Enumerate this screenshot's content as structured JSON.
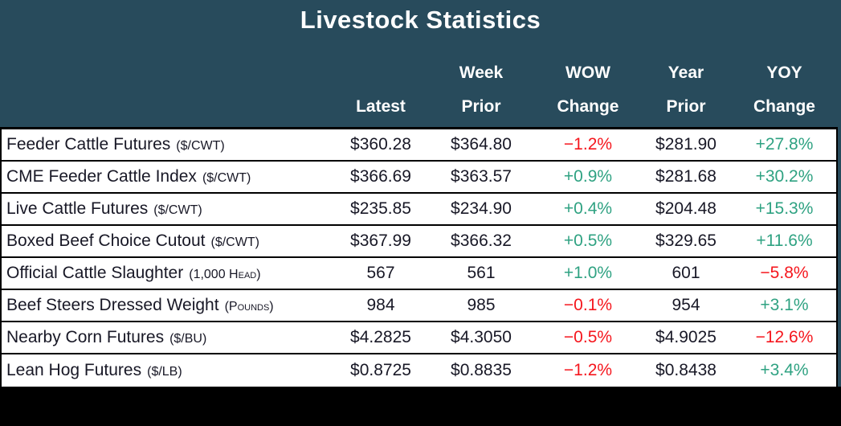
{
  "chart_data": {
    "type": "table",
    "title": "Livestock Statistics",
    "columns": [
      {
        "line1": "",
        "line2": "Latest"
      },
      {
        "line1": "Week",
        "line2": "Prior"
      },
      {
        "line1": "WOW",
        "line2": "Change"
      },
      {
        "line1": "Year",
        "line2": "Prior"
      },
      {
        "line1": "YOY",
        "line2": "Change"
      }
    ],
    "rows": [
      {
        "label": "Feeder Cattle Futures",
        "unit": "($/CWT)",
        "latest": "$360.28",
        "week_prior": "$364.80",
        "wow_change": "−1.2%",
        "year_prior": "$281.90",
        "yoy_change": "+27.8%"
      },
      {
        "label": "CME Feeder Cattle Index",
        "unit": "($/CWT)",
        "latest": "$366.69",
        "week_prior": "$363.57",
        "wow_change": "+0.9%",
        "year_prior": "$281.68",
        "yoy_change": "+30.2%"
      },
      {
        "label": "Live Cattle Futures",
        "unit": "($/CWT)",
        "latest": "$235.85",
        "week_prior": "$234.90",
        "wow_change": "+0.4%",
        "year_prior": "$204.48",
        "yoy_change": "+15.3%"
      },
      {
        "label": "Boxed Beef Choice Cutout",
        "unit": "($/CWT)",
        "latest": "$367.99",
        "week_prior": "$366.32",
        "wow_change": "+0.5%",
        "year_prior": "$329.65",
        "yoy_change": "+11.6%"
      },
      {
        "label": "Official Cattle Slaughter",
        "unit": "(1,000 Head)",
        "latest": "567",
        "week_prior": "561",
        "wow_change": "+1.0%",
        "year_prior": "601",
        "yoy_change": "−5.8%"
      },
      {
        "label": "Beef Steers Dressed Weight",
        "unit": "(Pounds)",
        "latest": "984",
        "week_prior": "985",
        "wow_change": "−0.1%",
        "year_prior": "954",
        "yoy_change": "+3.1%"
      },
      {
        "label": "Nearby Corn Futures",
        "unit": "($/BU)",
        "latest": "$4.2825",
        "week_prior": "$4.3050",
        "wow_change": "−0.5%",
        "year_prior": "$4.9025",
        "yoy_change": "−12.6%"
      },
      {
        "label": "Lean Hog Futures",
        "unit": "($/LB)",
        "latest": "$0.8725",
        "week_prior": "$0.8835",
        "wow_change": "−1.2%",
        "year_prior": "$0.8438",
        "yoy_change": "+3.4%"
      }
    ]
  },
  "colors": {
    "header_bg": "#284B5C",
    "positive": "#2FA282",
    "negative": "#F5161D",
    "text": "#181826",
    "footer_bg": "#000000"
  }
}
